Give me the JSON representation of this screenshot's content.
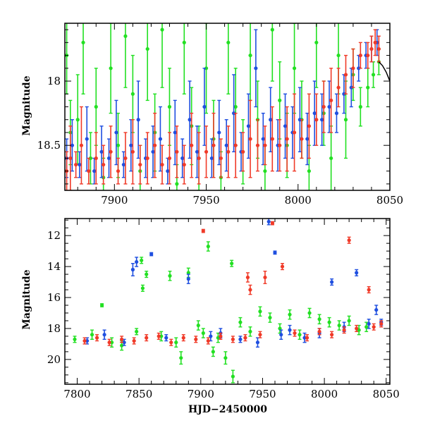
{
  "chart_data": [
    {
      "type": "scatter",
      "title": "",
      "xlabel": "",
      "ylabel": "Magnitude",
      "xlim": [
        7873,
        8050
      ],
      "ylim": [
        18.85,
        17.55
      ],
      "y_inverted": true,
      "grid": false,
      "xticks": [
        7900,
        7950,
        8000,
        8050
      ],
      "xtick_labels": [
        "7900",
        "7950",
        "8000",
        "8050"
      ],
      "yticks": [
        18,
        18.5
      ],
      "ytick_labels": [
        "18",
        "18.5"
      ],
      "curve": {
        "color": "#000000",
        "x": [
          8044,
          8046,
          8048,
          8050
        ],
        "y": [
          17.85,
          17.88,
          17.93,
          18.0
        ]
      },
      "series": [
        {
          "color": "#22e022",
          "x": [
            7874,
            7876,
            7880,
            7883,
            7887,
            7890,
            7894,
            7898,
            7902,
            7906,
            7910,
            7914,
            7918,
            7922,
            7926,
            7930,
            7934,
            7938,
            7942,
            7946,
            7950,
            7954,
            7958,
            7962,
            7966,
            7970,
            7974,
            7978,
            7982,
            7986,
            7990,
            7994,
            7998,
            8002,
            8006,
            8010,
            8014,
            8018,
            8022,
            8026,
            8030,
            8034,
            8038,
            8041,
            8044
          ],
          "y": [
            17.8,
            18.4,
            18.3,
            17.7,
            18.6,
            18.2,
            18.75,
            17.9,
            18.5,
            17.65,
            18.1,
            18.7,
            17.75,
            18.4,
            17.6,
            18.2,
            18.8,
            17.7,
            18.35,
            18.6,
            17.9,
            18.45,
            18.75,
            17.7,
            18.2,
            18.55,
            17.8,
            18.3,
            18.7,
            17.6,
            18.15,
            18.5,
            17.9,
            18.3,
            18.7,
            17.7,
            18.25,
            18.6,
            17.8,
            18.3,
            17.95,
            18.2,
            18.05,
            17.95,
            17.85
          ],
          "err": [
            0.3,
            0.25,
            0.35,
            0.4,
            0.2,
            0.3,
            0.15,
            0.35,
            0.25,
            0.4,
            0.3,
            0.2,
            0.4,
            0.3,
            0.45,
            0.3,
            0.15,
            0.4,
            0.3,
            0.25,
            0.35,
            0.3,
            0.2,
            0.4,
            0.3,
            0.25,
            0.35,
            0.3,
            0.2,
            0.4,
            0.3,
            0.25,
            0.35,
            0.3,
            0.2,
            0.35,
            0.25,
            0.25,
            0.3,
            0.3,
            0.2,
            0.15,
            0.15,
            0.1,
            0.1
          ]
        },
        {
          "color": "#1f4fe0",
          "x": [
            7874,
            7877,
            7881,
            7885,
            7889,
            7893,
            7897,
            7901,
            7905,
            7909,
            7913,
            7917,
            7921,
            7925,
            7929,
            7933,
            7937,
            7941,
            7945,
            7949,
            7953,
            7957,
            7961,
            7965,
            7969,
            7973,
            7977,
            7981,
            7985,
            7989,
            7993,
            7997,
            8001,
            8005,
            8009,
            8013,
            8017,
            8021,
            8025,
            8029,
            8033,
            8037,
            8040,
            8043
          ],
          "y": [
            18.6,
            18.5,
            18.65,
            18.45,
            18.7,
            18.55,
            18.6,
            18.4,
            18.65,
            18.5,
            18.3,
            18.6,
            18.55,
            18.45,
            18.7,
            18.4,
            18.6,
            18.3,
            18.55,
            18.2,
            18.6,
            18.4,
            18.5,
            18.25,
            18.55,
            18.35,
            17.9,
            18.45,
            18.3,
            18.5,
            18.35,
            18.4,
            18.3,
            18.45,
            18.25,
            18.3,
            18.2,
            18.25,
            18.1,
            18.05,
            17.9,
            17.8,
            17.75,
            17.7
          ],
          "err": [
            0.15,
            0.2,
            0.1,
            0.25,
            0.1,
            0.2,
            0.15,
            0.25,
            0.1,
            0.2,
            0.3,
            0.15,
            0.2,
            0.25,
            0.1,
            0.25,
            0.15,
            0.3,
            0.2,
            0.3,
            0.15,
            0.25,
            0.2,
            0.3,
            0.15,
            0.25,
            0.3,
            0.2,
            0.25,
            0.2,
            0.25,
            0.2,
            0.25,
            0.2,
            0.25,
            0.2,
            0.2,
            0.15,
            0.15,
            0.15,
            0.1,
            0.1,
            0.1,
            0.1
          ]
        },
        {
          "color": "#f03a28",
          "x": [
            7874,
            7876,
            7879,
            7882,
            7886,
            7890,
            7894,
            7898,
            7902,
            7906,
            7910,
            7914,
            7918,
            7922,
            7926,
            7930,
            7934,
            7938,
            7942,
            7946,
            7950,
            7954,
            7958,
            7962,
            7966,
            7970,
            7974,
            7978,
            7982,
            7986,
            7990,
            7994,
            7998,
            8002,
            8006,
            8010,
            8014,
            8018,
            8022,
            8026,
            8030,
            8034,
            8038,
            8040,
            8042,
            8044
          ],
          "y": [
            18.7,
            18.6,
            18.65,
            18.5,
            18.7,
            18.6,
            18.65,
            18.55,
            18.7,
            18.6,
            18.55,
            18.65,
            18.6,
            18.5,
            18.65,
            18.6,
            18.55,
            18.65,
            18.5,
            18.6,
            18.55,
            18.5,
            18.6,
            18.55,
            18.5,
            18.55,
            18.45,
            18.5,
            18.5,
            18.45,
            18.5,
            18.45,
            18.4,
            18.45,
            18.35,
            18.3,
            18.2,
            18.15,
            18.05,
            17.95,
            17.9,
            17.8,
            17.8,
            17.75,
            17.7,
            17.75
          ],
          "err": [
            0.15,
            0.25,
            0.1,
            0.3,
            0.1,
            0.2,
            0.15,
            0.2,
            0.1,
            0.2,
            0.25,
            0.15,
            0.2,
            0.25,
            0.15,
            0.2,
            0.2,
            0.15,
            0.25,
            0.2,
            0.2,
            0.25,
            0.15,
            0.2,
            0.25,
            0.15,
            0.3,
            0.2,
            0.15,
            0.25,
            0.2,
            0.25,
            0.3,
            0.15,
            0.25,
            0.2,
            0.2,
            0.25,
            0.15,
            0.15,
            0.15,
            0.1,
            0.1,
            0.1,
            0.1,
            0.1
          ]
        }
      ]
    },
    {
      "type": "scatter",
      "title": "",
      "xlabel": "HJD−2450000",
      "ylabel": "Magnitude",
      "xlim": [
        7790,
        8053
      ],
      "ylim": [
        21.6,
        10.9
      ],
      "y_inverted": true,
      "grid": false,
      "xticks": [
        7800,
        7850,
        7900,
        7950,
        8000,
        8050
      ],
      "xtick_labels": [
        "7800",
        "7850",
        "7900",
        "7950",
        "8000",
        "8050"
      ],
      "yticks": [
        12,
        14,
        16,
        18,
        20
      ],
      "ytick_labels": [
        "12",
        "14",
        "16",
        "18",
        "20"
      ],
      "series": [
        {
          "color": "#22e022",
          "x": [
            7798,
            7812,
            7820,
            7828,
            7836,
            7848,
            7852,
            7853,
            7856,
            7868,
            7875,
            7880,
            7884,
            7890,
            7898,
            7902,
            7906,
            7910,
            7914,
            7920,
            7925,
            7926,
            7932,
            7940,
            7948,
            7956,
            7964,
            7972,
            7980,
            7988,
            7996,
            8004,
            8012,
            8020,
            8028,
            8034
          ],
          "y": [
            18.7,
            18.4,
            16.5,
            18.9,
            19.1,
            18.2,
            13.6,
            15.4,
            14.5,
            18.5,
            14.6,
            18.9,
            19.9,
            14.4,
            17.8,
            18.3,
            12.7,
            19.5,
            18.6,
            19.9,
            13.8,
            21.1,
            17.6,
            18.2,
            16.9,
            17.3,
            18.0,
            17.1,
            18.4,
            17.0,
            17.4,
            17.6,
            17.8,
            17.5,
            18.1,
            17.9
          ],
          "err": [
            0.2,
            0.3,
            0.1,
            0.3,
            0.3,
            0.2,
            0.2,
            0.2,
            0.2,
            0.3,
            0.3,
            0.3,
            0.4,
            0.3,
            0.3,
            0.3,
            0.3,
            0.3,
            0.3,
            0.4,
            0.2,
            0.4,
            0.3,
            0.3,
            0.3,
            0.3,
            0.3,
            0.3,
            0.3,
            0.3,
            0.3,
            0.3,
            0.3,
            0.3,
            0.3,
            0.3
          ]
        },
        {
          "color": "#1f4fe0",
          "x": [
            7808,
            7822,
            7838,
            7845,
            7848,
            7860,
            7872,
            7890,
            7908,
            7916,
            7932,
            7946,
            7955,
            7960,
            7965,
            7972,
            7984,
            7996,
            8006,
            8016,
            8026,
            8036,
            8042,
            8046
          ],
          "y": [
            18.8,
            18.4,
            18.9,
            14.2,
            13.7,
            13.2,
            18.6,
            14.8,
            18.5,
            18.3,
            18.7,
            18.9,
            11.1,
            13.1,
            18.4,
            18.1,
            18.6,
            18.3,
            15.0,
            17.9,
            14.4,
            17.7,
            16.8,
            17.6
          ],
          "err": [
            0.2,
            0.3,
            0.2,
            0.4,
            0.3,
            0.1,
            0.2,
            0.3,
            0.3,
            0.3,
            0.2,
            0.3,
            0.2,
            0.1,
            0.3,
            0.3,
            0.3,
            0.3,
            0.2,
            0.3,
            0.2,
            0.3,
            0.3,
            0.2
          ]
        },
        {
          "color": "#f03a28",
          "x": [
            7806,
            7816,
            7826,
            7836,
            7846,
            7856,
            7866,
            7876,
            7886,
            7896,
            7902,
            7906,
            7916,
            7926,
            7936,
            7938,
            7940,
            7948,
            7952,
            7958,
            7966,
            7976,
            7986,
            7996,
            8006,
            8016,
            8020,
            8026,
            8036,
            8040,
            8046
          ],
          "y": [
            18.8,
            18.6,
            18.9,
            18.7,
            18.8,
            18.6,
            18.5,
            18.9,
            18.6,
            18.7,
            11.7,
            18.8,
            18.5,
            18.7,
            18.6,
            14.7,
            15.5,
            18.4,
            14.7,
            11.2,
            14.0,
            18.3,
            18.6,
            18.2,
            18.4,
            18.1,
            12.3,
            18.0,
            15.5,
            17.9,
            17.7
          ],
          "err": [
            0.2,
            0.2,
            0.2,
            0.2,
            0.2,
            0.2,
            0.2,
            0.2,
            0.2,
            0.2,
            0.1,
            0.2,
            0.2,
            0.2,
            0.2,
            0.3,
            0.3,
            0.2,
            0.4,
            0.1,
            0.2,
            0.2,
            0.2,
            0.2,
            0.2,
            0.2,
            0.2,
            0.2,
            0.2,
            0.2,
            0.2
          ]
        }
      ]
    }
  ]
}
